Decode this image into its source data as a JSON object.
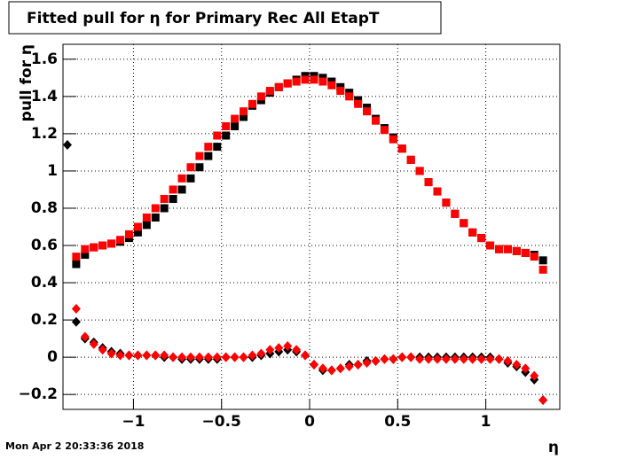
{
  "chart_data": {
    "type": "scatter",
    "title": "Fitted pull for  η for Primary Rec All EtapT",
    "y_label": "pull for  η",
    "x_label": "η",
    "date": "Mon Apr  2 20:33:36 2018",
    "grid": true,
    "xlim": [
      -1.4,
      1.42
    ],
    "ylim": [
      -0.28,
      1.68
    ],
    "xticks": [
      {
        "value": -1,
        "label": "−1"
      },
      {
        "value": -0.5,
        "label": "−0.5"
      },
      0,
      0.5,
      1
    ],
    "yticks": [
      {
        "value": -0.2,
        "label": "−0.2"
      },
      0,
      0.2,
      0.4,
      0.6,
      0.8,
      1,
      1.2,
      1.4,
      1.6
    ],
    "x": [
      -1.375,
      -1.325,
      -1.275,
      -1.225,
      -1.175,
      -1.125,
      -1.075,
      -1.025,
      -0.975,
      -0.925,
      -0.875,
      -0.825,
      -0.775,
      -0.725,
      -0.675,
      -0.625,
      -0.575,
      -0.525,
      -0.475,
      -0.425,
      -0.375,
      -0.325,
      -0.275,
      -0.225,
      -0.175,
      -0.125,
      -0.075,
      -0.025,
      0.025,
      0.075,
      0.125,
      0.175,
      0.225,
      0.275,
      0.325,
      0.375,
      0.425,
      0.475,
      0.525,
      0.575,
      0.625,
      0.675,
      0.725,
      0.775,
      0.825,
      0.875,
      0.925,
      0.975,
      1.025,
      1.075,
      1.125,
      1.175,
      1.225,
      1.275,
      1.325
    ],
    "series": [
      {
        "color": "#000000",
        "marker": "square",
        "values": [
          null,
          0.5,
          0.55,
          0.59,
          0.6,
          0.61,
          0.62,
          0.64,
          0.67,
          0.71,
          0.75,
          0.8,
          0.85,
          0.9,
          0.96,
          1.02,
          1.08,
          1.13,
          1.19,
          1.24,
          1.29,
          1.35,
          1.38,
          1.42,
          1.45,
          1.47,
          1.49,
          1.51,
          1.51,
          1.5,
          1.48,
          1.45,
          1.42,
          1.38,
          1.34,
          1.28,
          1.23,
          1.18,
          1.12,
          1.06,
          1.0,
          0.94,
          0.89,
          0.83,
          0.77,
          0.72,
          0.67,
          0.64,
          0.6,
          0.58,
          0.58,
          0.57,
          0.56,
          0.55,
          0.52
        ]
      },
      {
        "color": "#ff0000",
        "marker": "square",
        "values": [
          null,
          0.54,
          0.58,
          0.59,
          0.6,
          0.61,
          0.63,
          0.66,
          0.7,
          0.75,
          0.8,
          0.85,
          0.9,
          0.96,
          1.02,
          1.08,
          1.13,
          1.19,
          1.24,
          1.28,
          1.32,
          1.36,
          1.4,
          1.43,
          1.45,
          1.47,
          1.48,
          1.49,
          1.49,
          1.48,
          1.46,
          1.43,
          1.4,
          1.36,
          1.32,
          1.27,
          1.22,
          1.17,
          1.12,
          1.06,
          1.0,
          0.94,
          0.89,
          0.83,
          0.77,
          0.72,
          0.67,
          0.64,
          0.6,
          0.58,
          0.58,
          0.57,
          0.56,
          0.54,
          0.47
        ]
      },
      {
        "color": "#000000",
        "marker": "diamond",
        "values": [
          1.14,
          0.19,
          0.1,
          0.08,
          0.05,
          0.03,
          0.02,
          0.01,
          0.01,
          0.01,
          0.01,
          0.0,
          0.0,
          -0.01,
          -0.01,
          -0.01,
          -0.01,
          -0.01,
          0.0,
          0.0,
          0.0,
          0.0,
          0.01,
          0.02,
          0.03,
          0.04,
          0.03,
          0.01,
          -0.04,
          -0.07,
          -0.07,
          -0.06,
          -0.04,
          -0.04,
          -0.02,
          -0.02,
          -0.01,
          -0.01,
          0.0,
          0.0,
          0.0,
          0.0,
          0.0,
          0.0,
          0.0,
          0.0,
          0.0,
          0.0,
          0.0,
          -0.01,
          -0.03,
          -0.05,
          -0.08,
          -0.12,
          -0.23
        ]
      },
      {
        "color": "#ff0000",
        "marker": "diamond",
        "values": [
          null,
          0.26,
          0.11,
          0.07,
          0.04,
          0.02,
          0.01,
          0.01,
          0.01,
          0.01,
          0.01,
          0.01,
          0.0,
          0.0,
          0.0,
          0.0,
          0.0,
          0.0,
          0.0,
          0.0,
          0.0,
          0.01,
          0.02,
          0.04,
          0.05,
          0.06,
          0.04,
          0.01,
          -0.04,
          -0.06,
          -0.07,
          -0.06,
          -0.05,
          -0.04,
          -0.03,
          -0.02,
          -0.01,
          -0.01,
          0.0,
          0.0,
          -0.01,
          -0.01,
          -0.01,
          -0.01,
          -0.01,
          -0.01,
          -0.01,
          -0.01,
          -0.01,
          -0.01,
          -0.02,
          -0.04,
          -0.06,
          -0.1,
          -0.23
        ]
      }
    ]
  }
}
